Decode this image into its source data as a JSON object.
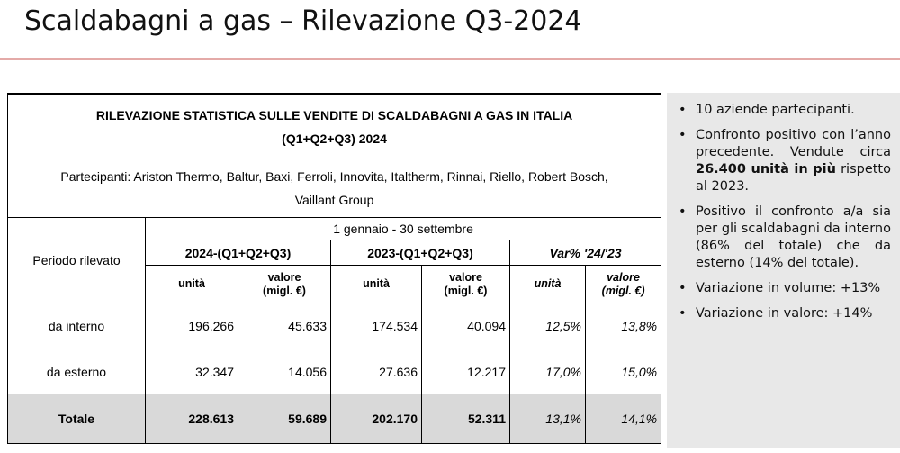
{
  "title": "Scaldabagni a gas – Rilevazione Q3-2024",
  "table": {
    "heading_line1": "RILEVAZIONE STATISTICA SULLE VENDITE DI SCALDABAGNI A GAS IN ITALIA",
    "heading_line2": "(Q1+Q2+Q3) 2024",
    "participants_line1": "Partecipanti: Ariston Thermo, Baltur, Baxi, Ferroli, Innovita, Italtherm, Rinnai, Riello, Robert Bosch,",
    "participants_line2": "Vaillant Group",
    "period_label": "Periodo rilevato",
    "period_range": "1 gennaio - 30 settembre",
    "col_2024": "2024-(Q1+Q2+Q3)",
    "col_2023": "2023-(Q1+Q2+Q3)",
    "col_var": "Var%  '24/'23",
    "sub_units": "unità",
    "sub_value_line1": "valore",
    "sub_value_line2": "(migl. €)",
    "rows": [
      {
        "label": "da interno",
        "u24": "196.266",
        "v24": "45.633",
        "u23": "174.534",
        "v23": "40.094",
        "var_u": "12,5%",
        "var_v": "13,8%"
      },
      {
        "label": "da esterno",
        "u24": "32.347",
        "v24": "14.056",
        "u23": "27.636",
        "v23": "12.217",
        "var_u": "17,0%",
        "var_v": "15,0%"
      },
      {
        "label": "Totale",
        "u24": "228.613",
        "v24": "59.689",
        "u23": "202.170",
        "v23": "52.311",
        "var_u": "13,1%",
        "var_v": "14,1%"
      }
    ]
  },
  "notes": {
    "bullet_glyph": "•",
    "n1": "10 aziende partecipanti.",
    "n2_pre": "Confronto positivo con l’anno precedente. Vendute circa ",
    "n2_bold": "26.400 unità in più",
    "n2_post": " rispetto al 2023.",
    "n3": "Positivo il confronto a/a sia per gli scaldabagni da interno (86% del totale) che da esterno (14% del totale).",
    "n4": "Variazione in volume: +13%",
    "n5": "Variazione in valore:  +14%"
  }
}
